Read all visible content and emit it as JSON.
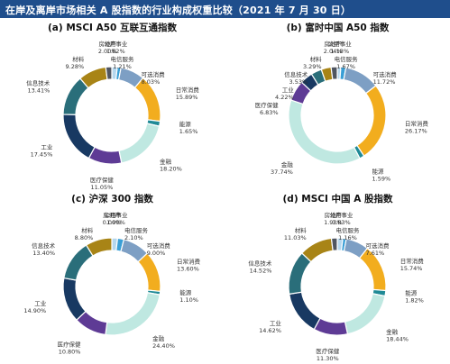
{
  "header": {
    "title": "在岸及离岸市场相关 A 股指数的行业构成权重比较（2021 年 7 月 30 日）"
  },
  "colors": {
    "header_bg": "#1f4e8c",
    "公用事业": "#b5d7ee",
    "电信服务": "#3a9fd6",
    "可选消费": "#7d9fc4",
    "日常消费": "#f2ad1e",
    "能源": "#1f8a96",
    "金融": "#bfe8e1",
    "医疗保健": "#5e3b95",
    "工业": "#183962",
    "信息技术": "#2a6e7a",
    "材料": "#a88416",
    "房地产": "#4f5560"
  },
  "chart_data": [
    {
      "type": "pie",
      "title": "(a)  MSCI A50 互联互通指数",
      "categories": [
        "公用事业",
        "电信服务",
        "可选消费",
        "日常消费",
        "能源",
        "金融",
        "医疗保健",
        "工业",
        "信息技术",
        "材料",
        "房地产"
      ],
      "values": [
        1.82,
        1.21,
        8.03,
        15.89,
        1.65,
        18.2,
        11.05,
        17.45,
        13.41,
        9.28,
        2.0
      ],
      "labels": [
        "1.82%",
        "1.21%",
        "8.03%",
        "15.89%",
        "1.65%",
        "18.20%",
        "11.05%",
        "17.45%",
        "13.41%",
        "9.28%",
        "2.00%"
      ]
    },
    {
      "type": "pie",
      "title": "(b)  富时中国 A50 指数",
      "categories": [
        "公用事业",
        "电信服务",
        "可选消费",
        "日常消费",
        "能源",
        "金融",
        "医疗保健",
        "工业",
        "信息技术",
        "材料",
        "房地产"
      ],
      "values": [
        1.18,
        1.67,
        11.72,
        26.17,
        1.59,
        37.74,
        6.83,
        4.22,
        3.53,
        3.29,
        2.04
      ],
      "labels": [
        "1.18%",
        "1.67%",
        "11.72%",
        "26.17%",
        "1.59%",
        "37.74%",
        "6.83%",
        "4.22%",
        "3.53%",
        "3.29%",
        "2.04%"
      ]
    },
    {
      "type": "pie",
      "title": "(c)  沪深 300 指数",
      "categories": [
        "公用事业",
        "电信服务",
        "可选消费",
        "日常消费",
        "能源",
        "金融",
        "医疗保健",
        "工业",
        "信息技术",
        "材料",
        "房地产"
      ],
      "values": [
        1.9,
        2.1,
        9.0,
        13.6,
        1.1,
        24.4,
        10.8,
        14.9,
        13.4,
        8.8,
        0.0
      ],
      "labels": [
        "1.90%",
        "2.10%",
        "9.00%",
        "13.60%",
        "1.10%",
        "24.40%",
        "10.80%",
        "14.90%",
        "13.40%",
        "8.80%",
        "0.00%"
      ]
    },
    {
      "type": "pie",
      "title": "(d)  MSCI 中国 A 股指数",
      "categories": [
        "公用事业",
        "电信服务",
        "可选消费",
        "日常消费",
        "能源",
        "金融",
        "医疗保健",
        "工业",
        "信息技术",
        "材料",
        "房地产"
      ],
      "values": [
        1.83,
        1.16,
        7.61,
        15.74,
        1.82,
        18.44,
        11.3,
        14.62,
        14.52,
        11.03,
        1.93
      ],
      "labels": [
        "1.83%",
        "1.16%",
        "7.61%",
        "15.74%",
        "1.82%",
        "18.44%",
        "11.30%",
        "14.62%",
        "14.52%",
        "11.03%",
        "1.93%"
      ]
    }
  ]
}
